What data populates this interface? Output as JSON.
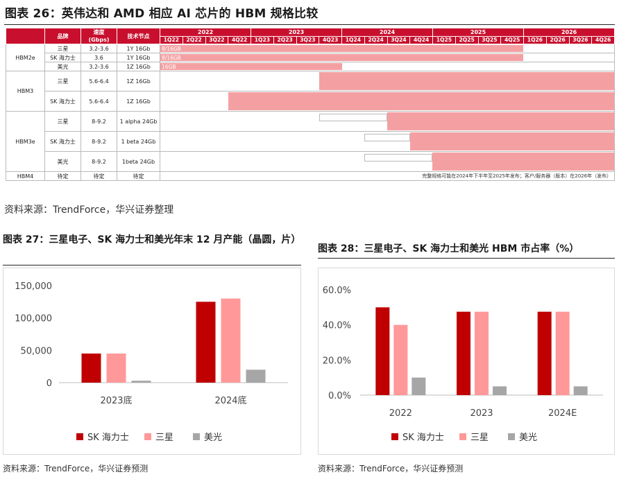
{
  "fig26": {
    "title": "图表 26：英伟达和 AMD  相应 AI  芯片的 HBM  规格比较",
    "headers": {
      "brand": "品牌",
      "speed": "速度\n(Gbps)",
      "node": "技术节点"
    },
    "years": [
      "2022",
      "2023",
      "2024",
      "2025",
      "2026"
    ],
    "quarters": [
      "1Q22",
      "2Q22",
      "3Q22",
      "4Q22",
      "1Q23",
      "2Q23",
      "3Q23",
      "4Q23",
      "1Q24",
      "2Q24",
      "3Q24",
      "4Q24",
      "1Q25",
      "2Q25",
      "3Q25",
      "4Q25",
      "1Q26",
      "2Q26",
      "3Q26",
      "4Q26"
    ],
    "rows": [
      {
        "gen": "HBM2e",
        "brand": "三星",
        "speed": "3.2-3.6",
        "node": "1Y 16Gb",
        "label": "8/16GB",
        "start_q": 0,
        "end_q": 16
      },
      {
        "gen": "",
        "brand": "SK 海力士",
        "speed": "3.6",
        "node": "1Y 16Gb",
        "label": "8/16GB",
        "start_q": 0,
        "end_q": 16
      },
      {
        "gen": "",
        "brand": "美光",
        "speed": "3.2-3.6",
        "node": "1Z 16Gb",
        "label": "16GB",
        "start_q": 0,
        "end_q": 8
      },
      {
        "gen": "HBM3",
        "brand": "三星",
        "speed": "5.6-6.4",
        "node": "1Z 16Gb",
        "label": "",
        "start_q": 7,
        "end_q": 20
      },
      {
        "gen": "",
        "brand": "SK 海力士",
        "speed": "5.6-6.4",
        "node": "1Z 16Gb",
        "label": "",
        "start_q": 3,
        "end_q": 20
      },
      {
        "gen": "HBM3e",
        "brand": "三星",
        "speed": "8-9.2",
        "node": "1 alpha 24Gb",
        "label": "",
        "start_q": 10,
        "end_q": 20,
        "pre_q": 7
      },
      {
        "gen": "",
        "brand": "SK 海力士",
        "speed": "8-9.2",
        "node": "1 beta 24Gb",
        "label": "",
        "start_q": 11,
        "end_q": 20,
        "pre_q": 9
      },
      {
        "gen": "",
        "brand": "美光",
        "speed": "8-9.2",
        "node": "1beta 24Gb",
        "label": "",
        "start_q": 12,
        "end_q": 20,
        "pre_q": 9
      },
      {
        "gen": "HBM4",
        "brand": "待定",
        "speed": "待定",
        "node": "待定",
        "label": "",
        "start_q": 0,
        "end_q": 0
      }
    ],
    "hbm4_note": "完整规格可能在2024年下半年至2025年发布；客户/服务器（版本）在2026年（发布）",
    "source": "资料来源：TrendForce，华兴证券整理"
  },
  "fig27": {
    "title": "图表 27：三星电子、SK  海力士和美光年末 12  月产能（晶圆，片）",
    "source": "资料来源：TrendForce，华兴证券预测"
  },
  "fig28": {
    "title": "图表 28：三星电子、SK  海力士和美光 HBM  市占率（%）",
    "source": "资料来源：TrendForce，华兴证券预测"
  },
  "colors": {
    "sk": "#c00000",
    "samsung": "#ff9999",
    "micron": "#a6a6a6",
    "header": "#c8102e",
    "bar": "#f4a0a3"
  },
  "chart_data": [
    {
      "type": "bar",
      "categories": [
        "2023底",
        "2024底"
      ],
      "series": [
        {
          "name": "SK 海力士",
          "values": [
            45000,
            125000
          ]
        },
        {
          "name": "三星",
          "values": [
            45000,
            130000
          ]
        },
        {
          "name": "美光",
          "values": [
            3000,
            20000
          ]
        }
      ],
      "yticks": [
        "150,000",
        "100,000",
        "50,000",
        "0"
      ],
      "ylim": [
        0,
        150000
      ],
      "legend": "bottom"
    },
    {
      "type": "bar",
      "categories": [
        "2022",
        "2023",
        "2024E"
      ],
      "series": [
        {
          "name": "SK 海力士",
          "values": [
            50,
            47.5,
            47.5
          ]
        },
        {
          "name": "三星",
          "values": [
            40,
            47.5,
            47.5
          ]
        },
        {
          "name": "美光",
          "values": [
            10,
            5,
            5
          ]
        }
      ],
      "yticks": [
        "60.0%",
        "40.0%",
        "20.0%",
        "0.0%"
      ],
      "ylim": [
        0,
        60
      ],
      "legend": "bottom"
    }
  ]
}
